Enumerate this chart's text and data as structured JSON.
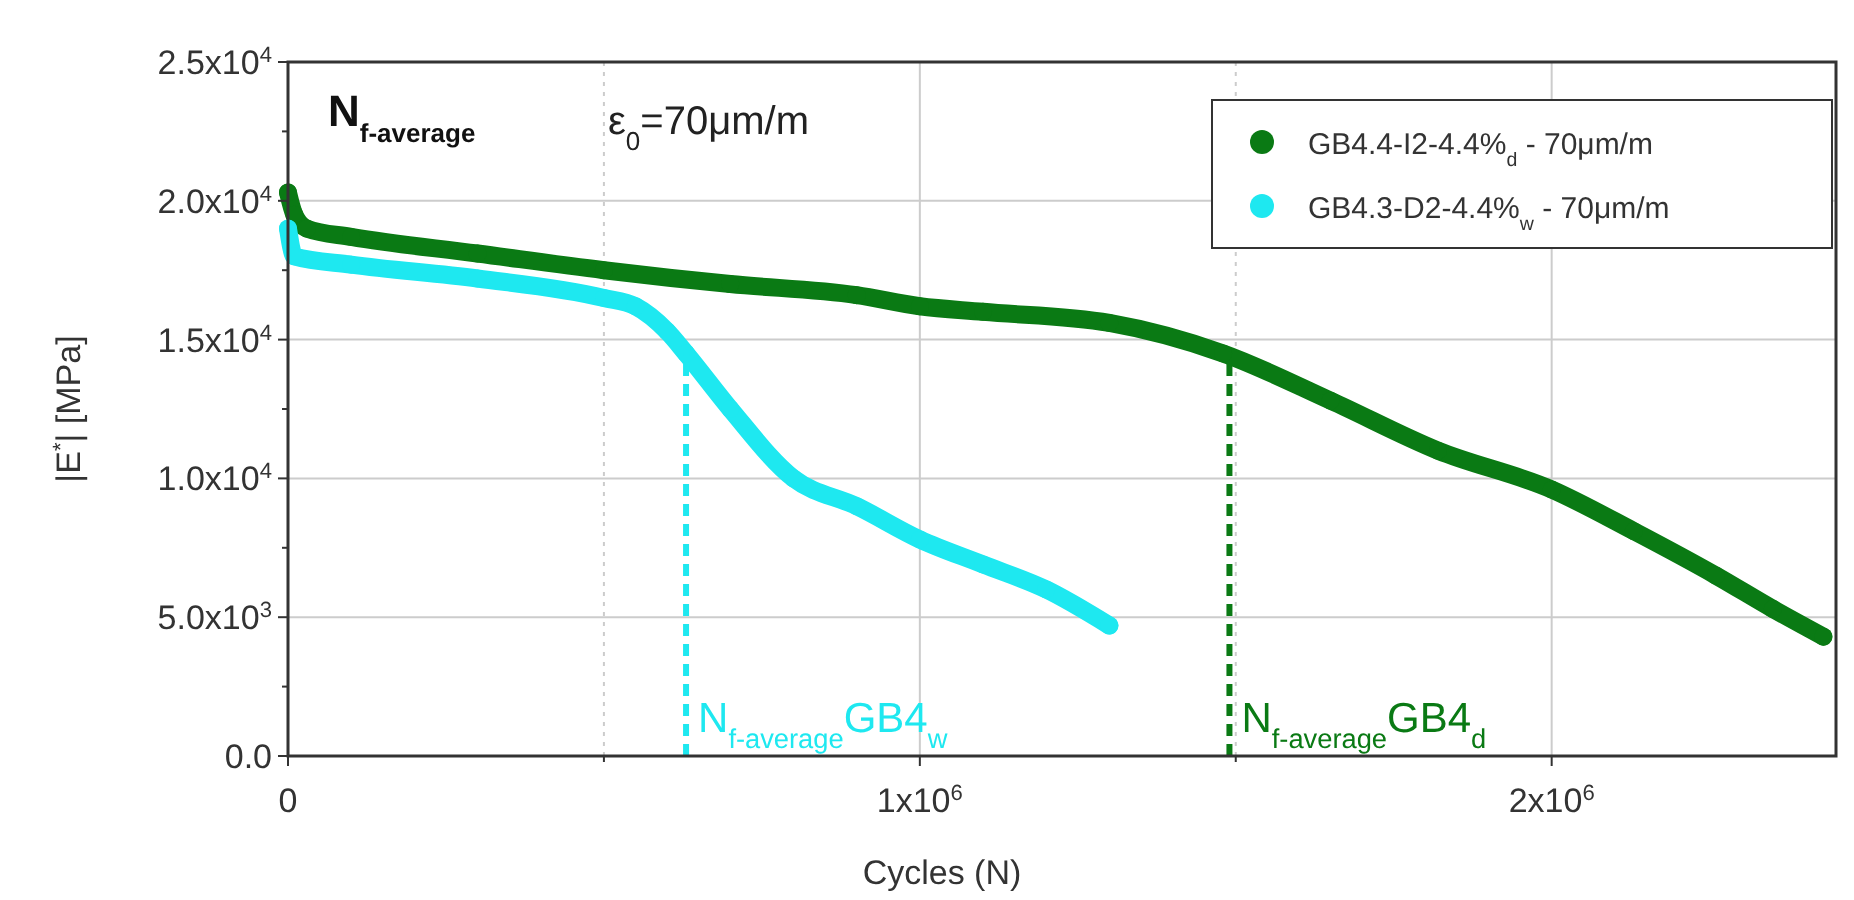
{
  "chart_data": {
    "type": "line",
    "xlabel": "Cycles (N)",
    "ylabel": "|E$^{*}$| [MPa]",
    "annotations": [
      "N$_{f-average}$",
      "ε$_{0}$=70μm/m"
    ],
    "series": [
      {
        "name": "GB4.4-I2-4.4%$_{d}$ - 70μm/m",
        "color": "#0a7a14",
        "x": [
          0,
          10000,
          30000,
          100000,
          300000,
          500000,
          700000,
          900000,
          1000000,
          1100000,
          1300000,
          1480000,
          1650000,
          1820000,
          2000000,
          2130000,
          2260000,
          2350000,
          2430000
        ],
        "values": [
          20300,
          19500,
          19000,
          18700,
          18100,
          17500,
          17000,
          16600,
          16200,
          16000,
          15600,
          14500,
          12800,
          11000,
          9600,
          8100,
          6500,
          5300,
          4300
        ]
      },
      {
        "name": "GB4.3-D2-4.4%$_{w}$ - 70μm/m",
        "color": "#1ee8f0",
        "x": [
          0,
          10000,
          100000,
          300000,
          500000,
          550000,
          600000,
          630000,
          700000,
          800000,
          900000,
          1000000,
          1100000,
          1200000,
          1300000
        ],
        "values": [
          19000,
          18000,
          17700,
          17200,
          16500,
          16200,
          15300,
          14500,
          12500,
          10000,
          9000,
          7800,
          6900,
          6000,
          4700
        ]
      }
    ],
    "xlim": [
      0,
      2450000
    ],
    "ylim": [
      0,
      25000
    ],
    "xticks": [
      {
        "value": 0,
        "label": "0"
      },
      {
        "value": 500000,
        "label": null
      },
      {
        "value": 1000000,
        "label": "1x10$^{6}$"
      },
      {
        "value": 1500000,
        "label": null
      },
      {
        "value": 2000000,
        "label": "2x10$^{6}$"
      }
    ],
    "yticks": [
      {
        "value": 0,
        "label": "0.0"
      },
      {
        "value": 2500,
        "label": null
      },
      {
        "value": 5000,
        "label": "5.0x10$^{3}$"
      },
      {
        "value": 7500,
        "label": null
      },
      {
        "value": 10000,
        "label": "1.0x10$^{4}$"
      },
      {
        "value": 12500,
        "label": null
      },
      {
        "value": 15000,
        "label": "1.5x10$^{4}$"
      },
      {
        "value": 17500,
        "label": null
      },
      {
        "value": 20000,
        "label": "2.0x10$^{4}$"
      },
      {
        "value": 22500,
        "label": null
      },
      {
        "value": 25000,
        "label": "2.5x10$^{4}$"
      }
    ],
    "ref_lines": [
      {
        "axis": "x",
        "value": 630000,
        "label": "N$_{f-average}$GB4$_{w}$",
        "color": "#1ee8f0",
        "line_style": "dashed"
      },
      {
        "axis": "x",
        "value": 1490000,
        "label": "N$_{f-average}$GB4$_{d}$",
        "color": "#0a7a14",
        "line_style": "dashed"
      }
    ],
    "grid": true,
    "legend": "top right",
    "marker": "circle",
    "line_style": "solid"
  }
}
